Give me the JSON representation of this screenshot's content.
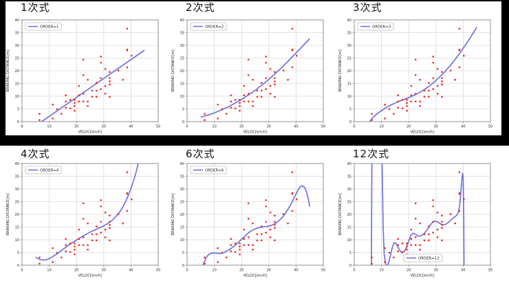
{
  "page": {
    "background": "#000000",
    "panel_color": "#ffffff"
  },
  "colors": {
    "curve": "#5f63e2",
    "scatter": "#ee2f28",
    "grid": "#d8d8d8",
    "spine": "#8f8f8f",
    "tick_text": "#222222",
    "label_text": "#222222",
    "legend_border": "#bcbcbc",
    "legend_bg": "#ffffff"
  },
  "axes": {
    "xlabel": "VELOC[km/h]",
    "ylabel": "BRAKING DISTANCE[m]",
    "xlim": [
      0,
      50
    ],
    "ylim": [
      0,
      40
    ],
    "xticks": [
      0,
      10,
      20,
      30,
      40,
      50
    ],
    "yticks": [
      0,
      5,
      10,
      15,
      20,
      25,
      30,
      35,
      40
    ],
    "grid": true
  },
  "chart_data": {
    "type": "scatter",
    "description": "Six subplots: polynomial regression fits of braking distance vs velocity, orders 1,2,3,4,6,12; same red scatter data in each panel, blue fit curve, legend ORDER=N",
    "xlabel": "VELOC[km/h]",
    "ylabel": "BRAKING DISTANCE[m]",
    "xlim": [
      0,
      50
    ],
    "ylim": [
      0,
      40
    ],
    "scatter_points": [
      [
        6.44,
        0.61
      ],
      [
        6.44,
        3.05
      ],
      [
        11.27,
        1.22
      ],
      [
        11.27,
        6.71
      ],
      [
        12.87,
        4.88
      ],
      [
        14.48,
        3.05
      ],
      [
        16.09,
        5.49
      ],
      [
        16.09,
        7.92
      ],
      [
        16.09,
        10.36
      ],
      [
        17.7,
        5.18
      ],
      [
        17.7,
        8.53
      ],
      [
        19.31,
        4.27
      ],
      [
        19.31,
        6.1
      ],
      [
        19.31,
        7.32
      ],
      [
        19.31,
        8.53
      ],
      [
        20.92,
        7.92
      ],
      [
        20.92,
        10.36
      ],
      [
        20.92,
        10.36
      ],
      [
        20.92,
        14.02
      ],
      [
        22.53,
        7.92
      ],
      [
        22.53,
        10.97
      ],
      [
        22.53,
        18.29
      ],
      [
        22.53,
        24.38
      ],
      [
        24.14,
        6.1
      ],
      [
        24.14,
        7.92
      ],
      [
        24.14,
        16.46
      ],
      [
        25.75,
        9.75
      ],
      [
        25.75,
        12.19
      ],
      [
        27.36,
        9.75
      ],
      [
        27.36,
        12.19
      ],
      [
        27.36,
        15.24
      ],
      [
        28.97,
        12.8
      ],
      [
        28.97,
        17.07
      ],
      [
        28.97,
        23.16
      ],
      [
        28.97,
        25.6
      ],
      [
        30.58,
        10.97
      ],
      [
        30.58,
        14.02
      ],
      [
        30.58,
        20.73
      ],
      [
        32.19,
        9.75
      ],
      [
        32.19,
        14.63
      ],
      [
        32.19,
        15.85
      ],
      [
        32.19,
        17.07
      ],
      [
        32.19,
        19.51
      ],
      [
        35.41,
        20.12
      ],
      [
        37.01,
        16.46
      ],
      [
        38.62,
        21.34
      ],
      [
        38.62,
        28.04
      ],
      [
        38.62,
        28.35
      ],
      [
        38.62,
        36.58
      ],
      [
        40.23,
        25.91
      ]
    ],
    "subplots": [
      {
        "title": "1次式",
        "legend": "ORDER=1",
        "legend_loc": "upper-left",
        "curve": [
          [
            7.2,
            0
          ],
          [
            45,
            28.1
          ]
        ]
      },
      {
        "title": "2次式",
        "legend": "ORDER=2",
        "legend_loc": "upper-left",
        "curve": [
          [
            5,
            1.7
          ],
          [
            10,
            3.4
          ],
          [
            15,
            5.7
          ],
          [
            20,
            8.7
          ],
          [
            25,
            12.3
          ],
          [
            30,
            16.6
          ],
          [
            35,
            21.5
          ],
          [
            40,
            27.0
          ],
          [
            45,
            32.6
          ]
        ]
      },
      {
        "title": "3次式",
        "legend": "ORDER=3",
        "legend_loc": "upper-left",
        "curve": [
          [
            5.6,
            0
          ],
          [
            7,
            1.8
          ],
          [
            9,
            3.6
          ],
          [
            11,
            5.0
          ],
          [
            13,
            6.3
          ],
          [
            15,
            7.3
          ],
          [
            17,
            8.2
          ],
          [
            19,
            9.0
          ],
          [
            21,
            9.9
          ],
          [
            23,
            10.9
          ],
          [
            25,
            12.1
          ],
          [
            27,
            13.5
          ],
          [
            29,
            15.2
          ],
          [
            31,
            17.2
          ],
          [
            33,
            19.3
          ],
          [
            35,
            21.7
          ],
          [
            37,
            24.4
          ],
          [
            39,
            27.3
          ],
          [
            41,
            30.4
          ],
          [
            43,
            33.7
          ],
          [
            45,
            37.2
          ]
        ]
      },
      {
        "title": "4次式",
        "legend": "ORDER=4",
        "legend_loc": "upper-left",
        "curve": [
          [
            5,
            3.2
          ],
          [
            6,
            2.5
          ],
          [
            7,
            2.1
          ],
          [
            8,
            2.0
          ],
          [
            9,
            2.2
          ],
          [
            10,
            2.6
          ],
          [
            11,
            3.2
          ],
          [
            12,
            3.9
          ],
          [
            13,
            4.6
          ],
          [
            14,
            5.4
          ],
          [
            15,
            6.2
          ],
          [
            16,
            7.0
          ],
          [
            17,
            7.8
          ],
          [
            18,
            8.5
          ],
          [
            19,
            9.2
          ],
          [
            20,
            9.9
          ],
          [
            21,
            10.6
          ],
          [
            22,
            11.2
          ],
          [
            23,
            11.8
          ],
          [
            24,
            12.4
          ],
          [
            25,
            13.0
          ],
          [
            26,
            13.5
          ],
          [
            27,
            14.0
          ],
          [
            28,
            14.5
          ],
          [
            29,
            15.0
          ],
          [
            30,
            15.5
          ],
          [
            31,
            16.1
          ],
          [
            32,
            16.8
          ],
          [
            33,
            17.6
          ],
          [
            34,
            18.6
          ],
          [
            35,
            19.8
          ],
          [
            36,
            21.2
          ],
          [
            37,
            22.9
          ],
          [
            38,
            25.0
          ],
          [
            39,
            27.4
          ],
          [
            40,
            30.2
          ],
          [
            41,
            33.4
          ],
          [
            42,
            37.0
          ],
          [
            42.8,
            40.8
          ]
        ]
      },
      {
        "title": "6次式",
        "legend": "ORDER=6",
        "legend_loc": "upper-left",
        "curve": [
          [
            5.8,
            0
          ],
          [
            6.2,
            1.0
          ],
          [
            6.8,
            2.5
          ],
          [
            7.5,
            3.7
          ],
          [
            8.2,
            4.4
          ],
          [
            9,
            4.7
          ],
          [
            10,
            4.8
          ],
          [
            11,
            4.7
          ],
          [
            12,
            4.6
          ],
          [
            13,
            4.8
          ],
          [
            14,
            5.2
          ],
          [
            15,
            5.8
          ],
          [
            16,
            6.5
          ],
          [
            17,
            7.3
          ],
          [
            18,
            8.2
          ],
          [
            19,
            9.2
          ],
          [
            20,
            10.2
          ],
          [
            21,
            11.2
          ],
          [
            22,
            12.2
          ],
          [
            23,
            13.1
          ],
          [
            24,
            13.8
          ],
          [
            25,
            14.3
          ],
          [
            26,
            14.7
          ],
          [
            27,
            14.9
          ],
          [
            28,
            15.1
          ],
          [
            29,
            15.2
          ],
          [
            30,
            15.4
          ],
          [
            31,
            15.7
          ],
          [
            32,
            16.2
          ],
          [
            33,
            16.9
          ],
          [
            34,
            17.8
          ],
          [
            35,
            18.9
          ],
          [
            36,
            20.3
          ],
          [
            37,
            21.9
          ],
          [
            38,
            23.8
          ],
          [
            39,
            25.9
          ],
          [
            40,
            28.0
          ],
          [
            41,
            30.1
          ],
          [
            41.8,
            31.1
          ],
          [
            42.5,
            31.2
          ],
          [
            43.2,
            30.5
          ],
          [
            44,
            28.4
          ],
          [
            44.6,
            25.5
          ],
          [
            45,
            23.0
          ]
        ]
      },
      {
        "title": "12次式",
        "legend": "ORDER=12",
        "legend_loc": "lower-center",
        "curve": [
          [
            6.25,
            -8
          ],
          [
            6.5,
            46
          ],
          [
            10.15,
            46
          ],
          [
            10.6,
            15
          ],
          [
            11.0,
            4
          ],
          [
            11.6,
            0.3
          ],
          [
            12.0,
            -0.5
          ],
          [
            12.5,
            0.5
          ],
          [
            13.2,
            3.5
          ],
          [
            14.0,
            7.0
          ],
          [
            14.6,
            8.8
          ],
          [
            15.3,
            8.6
          ],
          [
            16.2,
            6.8
          ],
          [
            17.0,
            5.4
          ],
          [
            17.6,
            4.9
          ],
          [
            18.3,
            5.3
          ],
          [
            19.2,
            7.0
          ],
          [
            20.0,
            9.5
          ],
          [
            20.8,
            11.8
          ],
          [
            21.6,
            12.6
          ],
          [
            22.4,
            12.3
          ],
          [
            23.2,
            11.6
          ],
          [
            24.0,
            11.4
          ],
          [
            24.8,
            11.7
          ],
          [
            25.6,
            12.4
          ],
          [
            26.4,
            13.4
          ],
          [
            27.2,
            14.6
          ],
          [
            28.0,
            15.9
          ],
          [
            28.8,
            16.9
          ],
          [
            29.6,
            17.3
          ],
          [
            30.4,
            17.1
          ],
          [
            31.2,
            16.6
          ],
          [
            32.0,
            16.1
          ],
          [
            32.8,
            15.9
          ],
          [
            33.6,
            16.1
          ],
          [
            34.4,
            16.7
          ],
          [
            35.2,
            17.5
          ],
          [
            36.0,
            18.3
          ],
          [
            36.8,
            18.9
          ],
          [
            37.6,
            19.6
          ],
          [
            38.2,
            20.8
          ],
          [
            38.7,
            23.5
          ],
          [
            39.1,
            28.0
          ],
          [
            39.5,
            33.5
          ],
          [
            39.8,
            36.2
          ],
          [
            40.0,
            34.0
          ],
          [
            40.2,
            20.0
          ],
          [
            40.35,
            -8
          ]
        ]
      }
    ]
  }
}
